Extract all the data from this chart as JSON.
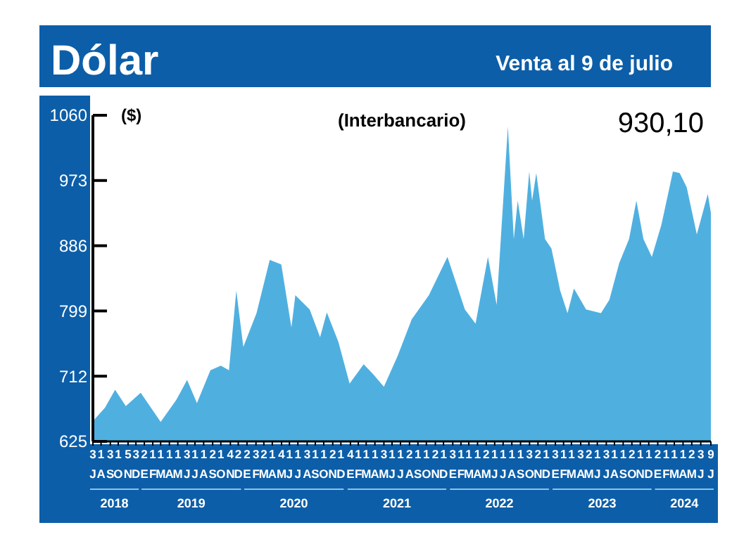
{
  "chart_data": {
    "type": "area",
    "title": "Dólar",
    "subtitle": "Venta al 9 de julio",
    "ylabel": "($)",
    "annotations": [
      "(Interbancario)",
      "930,10",
      "2018",
      "2019",
      "2020",
      "2021",
      "2022",
      "2023",
      "2024"
    ],
    "x": [
      "2018-07-03",
      "2018-07-10",
      "2018-08-15",
      "2018-09-20",
      "2018-10-28",
      "2018-12-20",
      "2019-03-01",
      "2019-04-25",
      "2019-06-03",
      "2019-07-08",
      "2019-08-25",
      "2019-10-01",
      "2019-10-30",
      "2019-11-25",
      "2019-12-20",
      "2020-02-05",
      "2020-03-23",
      "2020-05-03",
      "2020-06-08",
      "2020-06-22",
      "2020-08-12",
      "2020-09-18",
      "2020-10-12",
      "2020-11-22",
      "2021-01-01",
      "2021-02-20",
      "2021-03-25",
      "2021-05-03",
      "2021-06-22",
      "2021-08-10",
      "2021-10-10",
      "2021-12-15",
      "2022-02-15",
      "2022-03-25",
      "2022-05-08",
      "2022-06-08",
      "2022-07-18",
      "2022-08-08",
      "2022-08-22",
      "2022-09-12",
      "2022-10-02",
      "2022-10-12",
      "2022-10-27",
      "2022-11-27",
      "2022-12-20",
      "2023-01-20",
      "2023-02-15",
      "2023-03-10",
      "2023-04-22",
      "2023-06-14",
      "2023-07-14",
      "2023-08-18",
      "2023-09-22",
      "2023-10-18",
      "2023-11-12",
      "2023-12-12",
      "2024-01-15",
      "2024-02-25",
      "2024-03-20",
      "2024-04-14",
      "2024-05-20",
      "2024-06-28",
      "2024-07-09"
    ],
    "series": [
      {
        "color": "#4fb0e0",
        "values": [
          650,
          655,
          670,
          694,
          672,
          690,
          651,
          680,
          707,
          676,
          720,
          726,
          720,
          826,
          751,
          796,
          867,
          861,
          777,
          820,
          801,
          764,
          797,
          758,
          702,
          728,
          715,
          698,
          740,
          788,
          820,
          871,
          801,
          782,
          871,
          807,
          1045,
          895,
          946,
          895,
          985,
          946,
          983,
          895,
          882,
          826,
          796,
          829,
          801,
          796,
          814,
          863,
          895,
          946,
          895,
          871,
          914,
          985,
          983,
          964,
          901,
          955,
          930
        ]
      }
    ],
    "xlim": [
      "2018-07-03",
      "2024-07-09"
    ],
    "ylim": [
      625,
      1060
    ],
    "yticks": [
      625,
      712,
      799,
      886,
      973,
      1060
    ],
    "xticks": [
      {
        "value": "2018-07-03",
        "label": "3\nJ"
      },
      {
        "value": "2018-08-01",
        "label": "1\nA"
      },
      {
        "value": "2018-09-03",
        "label": "3\nS"
      },
      {
        "value": "2018-10-01",
        "label": "1\nO"
      },
      {
        "value": "2018-11-05",
        "label": "5\nN"
      },
      {
        "value": "2018-12-03",
        "label": "3\nD"
      },
      {
        "value": "2019-01-02",
        "label": "2\nE"
      },
      {
        "value": "2019-02-01",
        "label": "1\nF"
      },
      {
        "value": "2019-03-01",
        "label": "1\nM"
      },
      {
        "value": "2019-04-01",
        "label": "1\nA"
      },
      {
        "value": "2019-05-01",
        "label": "1\nM"
      },
      {
        "value": "2019-06-03",
        "label": "3\nJ"
      },
      {
        "value": "2019-07-01",
        "label": "1\nJ"
      },
      {
        "value": "2019-08-01",
        "label": "1\nA"
      },
      {
        "value": "2019-09-02",
        "label": "2\nS"
      },
      {
        "value": "2019-10-01",
        "label": "1\nO"
      },
      {
        "value": "2019-11-04",
        "label": "4\nN"
      },
      {
        "value": "2019-12-02",
        "label": "2\nD"
      },
      {
        "value": "2020-01-02",
        "label": "2\nE"
      },
      {
        "value": "2020-02-03",
        "label": "3\nF"
      },
      {
        "value": "2020-03-02",
        "label": "2\nM"
      },
      {
        "value": "2020-04-01",
        "label": "1\nA"
      },
      {
        "value": "2020-05-04",
        "label": "4\nM"
      },
      {
        "value": "2020-06-01",
        "label": "1\nJ"
      },
      {
        "value": "2020-07-01",
        "label": "1\nJ"
      },
      {
        "value": "2020-08-03",
        "label": "3\nA"
      },
      {
        "value": "2020-09-01",
        "label": "1\nS"
      },
      {
        "value": "2020-10-01",
        "label": "1\nO"
      },
      {
        "value": "2020-11-02",
        "label": "2\nN"
      },
      {
        "value": "2020-12-01",
        "label": "1\nD"
      },
      {
        "value": "2021-01-04",
        "label": "4\nE"
      },
      {
        "value": "2021-02-01",
        "label": "1\nF"
      },
      {
        "value": "2021-03-01",
        "label": "1\nM"
      },
      {
        "value": "2021-04-01",
        "label": "1\nA"
      },
      {
        "value": "2021-05-03",
        "label": "3\nM"
      },
      {
        "value": "2021-06-01",
        "label": "1\nJ"
      },
      {
        "value": "2021-07-01",
        "label": "1\nJ"
      },
      {
        "value": "2021-08-02",
        "label": "2\nA"
      },
      {
        "value": "2021-09-01",
        "label": "1\nS"
      },
      {
        "value": "2021-10-01",
        "label": "1\nO"
      },
      {
        "value": "2021-11-02",
        "label": "2\nN"
      },
      {
        "value": "2021-12-01",
        "label": "1\nD"
      },
      {
        "value": "2022-01-03",
        "label": "3\nE"
      },
      {
        "value": "2022-02-01",
        "label": "1\nF"
      },
      {
        "value": "2022-03-01",
        "label": "1\nM"
      },
      {
        "value": "2022-04-01",
        "label": "1\nA"
      },
      {
        "value": "2022-05-02",
        "label": "2\nM"
      },
      {
        "value": "2022-06-01",
        "label": "1\nJ"
      },
      {
        "value": "2022-07-01",
        "label": "1\nJ"
      },
      {
        "value": "2022-08-01",
        "label": "1\nA"
      },
      {
        "value": "2022-09-01",
        "label": "1\nS"
      },
      {
        "value": "2022-10-03",
        "label": "3\nO"
      },
      {
        "value": "2022-11-02",
        "label": "2\nN"
      },
      {
        "value": "2022-12-01",
        "label": "1\nD"
      },
      {
        "value": "2023-01-03",
        "label": "3\nE"
      },
      {
        "value": "2023-02-01",
        "label": "1\nF"
      },
      {
        "value": "2023-03-01",
        "label": "1\nM"
      },
      {
        "value": "2023-04-03",
        "label": "3\nA"
      },
      {
        "value": "2023-05-02",
        "label": "2\nM"
      },
      {
        "value": "2023-06-01",
        "label": "1\nJ"
      },
      {
        "value": "2023-07-03",
        "label": "3\nJ"
      },
      {
        "value": "2023-08-01",
        "label": "1\nA"
      },
      {
        "value": "2023-09-01",
        "label": "1\nS"
      },
      {
        "value": "2023-10-02",
        "label": "2\nO"
      },
      {
        "value": "2023-11-01",
        "label": "1\nN"
      },
      {
        "value": "2023-12-01",
        "label": "1\nD"
      },
      {
        "value": "2024-01-02",
        "label": "2\nE"
      },
      {
        "value": "2024-02-01",
        "label": "1\nF"
      },
      {
        "value": "2024-03-01",
        "label": "1\nM"
      },
      {
        "value": "2024-04-01",
        "label": "1\nA"
      },
      {
        "value": "2024-05-02",
        "label": "2\nM"
      },
      {
        "value": "2024-06-03",
        "label": "3\nJ"
      },
      {
        "value": "2024-07-09",
        "label": "9\nJ"
      }
    ],
    "grid": false
  }
}
